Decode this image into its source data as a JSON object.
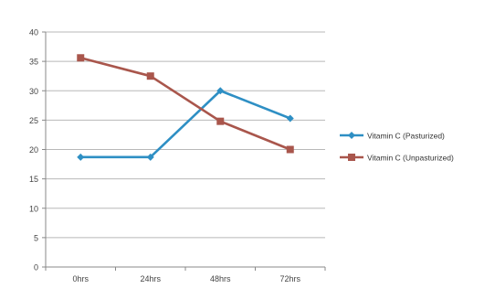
{
  "chart_data": {
    "type": "line",
    "title": "",
    "xlabel": "",
    "ylabel": "",
    "categories": [
      "0hrs",
      "24hrs",
      "48hrs",
      "72hrs"
    ],
    "ylim": [
      0,
      40
    ],
    "yticks": [
      "0",
      "5",
      "10",
      "15",
      "20",
      "25",
      "30",
      "35",
      "40"
    ],
    "grid": true,
    "legend_position": "right",
    "series": [
      {
        "name": "Vitamin C (Pasturized)",
        "values": [
          18.7,
          18.7,
          30,
          25.3
        ],
        "color": "#2e8fc4",
        "marker": "diamond"
      },
      {
        "name": "Vitamin C (Unpasturized)",
        "values": [
          35.6,
          32.5,
          24.8,
          20
        ],
        "color": "#a9564c",
        "marker": "square"
      }
    ]
  }
}
